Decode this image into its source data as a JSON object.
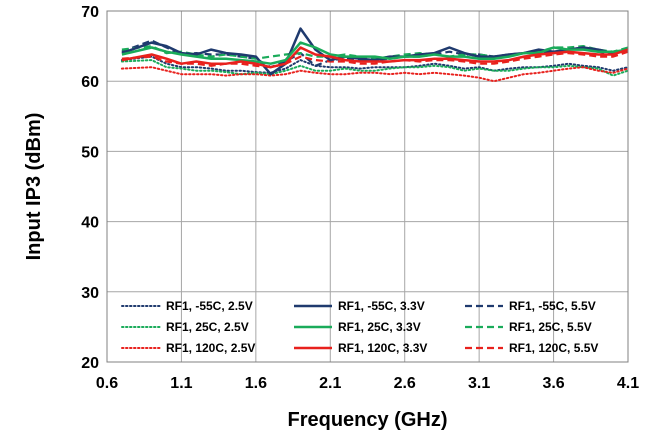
{
  "chart_data": {
    "type": "line",
    "title": "",
    "xlabel": "Frequency (GHz)",
    "ylabel": "Input IP3 (dBm)",
    "xlim": [
      0.6,
      4.1
    ],
    "ylim": [
      20,
      70
    ],
    "xticks": [
      "0.6",
      "1.1",
      "1.6",
      "2.1",
      "2.6",
      "3.1",
      "3.6",
      "4.1"
    ],
    "yticks": [
      "20",
      "30",
      "40",
      "50",
      "60",
      "70"
    ],
    "grid": true,
    "legend_position": "bottom",
    "x": [
      0.7,
      0.9,
      1.0,
      1.1,
      1.2,
      1.3,
      1.4,
      1.5,
      1.6,
      1.7,
      1.8,
      1.9,
      2.0,
      2.1,
      2.2,
      2.3,
      2.4,
      2.5,
      2.6,
      2.7,
      2.8,
      2.9,
      3.0,
      3.1,
      3.2,
      3.3,
      3.4,
      3.5,
      3.6,
      3.7,
      3.8,
      3.9,
      4.0,
      4.1
    ],
    "series": [
      {
        "name": "RF1, -55C, 2.5V",
        "color": "#1f3a6e",
        "style": "dotted",
        "values": [
          63.0,
          63.5,
          62.5,
          62.0,
          62.0,
          61.8,
          61.5,
          61.5,
          61.3,
          61.2,
          61.8,
          63.0,
          62.2,
          62.0,
          62.0,
          61.8,
          62.0,
          62.0,
          62.0,
          62.2,
          62.5,
          62.2,
          61.8,
          62.0,
          61.5,
          61.8,
          62.0,
          62.0,
          62.2,
          62.5,
          62.2,
          62.0,
          61.5,
          62.0
        ]
      },
      {
        "name": "RF1, -55C, 3.3V",
        "color": "#1f3a6e",
        "style": "solid",
        "values": [
          64.0,
          65.5,
          65.0,
          64.0,
          63.8,
          64.5,
          64.0,
          63.8,
          63.5,
          61.0,
          62.5,
          67.5,
          64.5,
          63.0,
          63.5,
          63.2,
          63.0,
          63.5,
          63.5,
          63.8,
          64.0,
          64.8,
          64.0,
          63.5,
          63.5,
          63.8,
          64.0,
          64.5,
          64.2,
          64.5,
          64.8,
          64.5,
          64.0,
          64.5
        ]
      },
      {
        "name": "RF1, -55C, 5.5V",
        "color": "#1f3a6e",
        "style": "dashed",
        "values": [
          64.2,
          65.8,
          64.8,
          63.8,
          64.0,
          63.8,
          63.8,
          63.5,
          63.2,
          62.0,
          62.8,
          64.0,
          62.2,
          63.0,
          63.2,
          63.0,
          63.0,
          63.2,
          63.5,
          63.5,
          63.8,
          64.2,
          63.8,
          63.8,
          63.5,
          63.8,
          64.0,
          64.2,
          64.0,
          64.5,
          64.8,
          64.2,
          63.8,
          64.5
        ]
      },
      {
        "name": "RF1, 25C, 2.5V",
        "color": "#1aab5a",
        "style": "dotted",
        "values": [
          62.8,
          63.0,
          62.0,
          61.8,
          61.5,
          61.5,
          61.3,
          61.0,
          61.2,
          61.0,
          61.5,
          62.2,
          61.5,
          61.5,
          61.8,
          61.5,
          61.5,
          61.8,
          62.0,
          62.0,
          62.2,
          62.0,
          61.5,
          61.8,
          61.5,
          61.5,
          61.8,
          62.0,
          62.0,
          62.2,
          62.0,
          61.8,
          60.8,
          61.5
        ]
      },
      {
        "name": "RF1, 25C, 3.3V",
        "color": "#1aab5a",
        "style": "solid",
        "values": [
          63.8,
          64.8,
          64.2,
          63.8,
          63.5,
          63.2,
          63.2,
          63.0,
          62.8,
          62.5,
          63.0,
          65.5,
          64.8,
          63.8,
          63.5,
          63.5,
          63.5,
          63.2,
          63.5,
          63.5,
          63.8,
          63.5,
          63.5,
          63.2,
          63.2,
          63.5,
          64.0,
          64.0,
          64.8,
          64.5,
          64.5,
          64.2,
          64.2,
          64.5
        ]
      },
      {
        "name": "RF1, 25C, 5.5V",
        "color": "#1aab5a",
        "style": "dashed",
        "values": [
          64.5,
          65.0,
          64.0,
          64.2,
          63.8,
          63.5,
          63.8,
          63.5,
          63.2,
          63.5,
          63.8,
          64.0,
          63.5,
          63.5,
          63.8,
          63.5,
          63.2,
          63.5,
          63.8,
          64.0,
          63.8,
          63.5,
          63.8,
          63.8,
          63.5,
          63.8,
          64.0,
          64.2,
          64.8,
          64.8,
          65.0,
          64.5,
          64.2,
          64.8
        ]
      },
      {
        "name": "RF1, 120C, 2.5V",
        "color": "#e8211d",
        "style": "dotted",
        "values": [
          61.8,
          62.0,
          61.5,
          61.0,
          61.0,
          61.0,
          60.8,
          61.0,
          61.0,
          60.8,
          61.0,
          61.5,
          61.2,
          61.0,
          61.0,
          61.2,
          61.2,
          61.0,
          61.2,
          61.0,
          61.2,
          61.0,
          60.8,
          60.5,
          60.0,
          60.5,
          61.0,
          61.2,
          61.5,
          61.8,
          62.0,
          61.5,
          61.2,
          61.8
        ]
      },
      {
        "name": "RF1, 120C, 3.3V",
        "color": "#e8211d",
        "style": "solid",
        "values": [
          63.0,
          63.8,
          63.2,
          62.5,
          62.8,
          62.5,
          62.5,
          62.8,
          62.5,
          62.0,
          62.5,
          64.8,
          63.8,
          63.5,
          63.0,
          62.8,
          62.8,
          62.8,
          63.0,
          63.0,
          63.2,
          63.2,
          63.0,
          62.8,
          62.8,
          63.0,
          63.5,
          63.8,
          64.0,
          64.2,
          64.0,
          63.8,
          63.8,
          64.5
        ]
      },
      {
        "name": "RF1, 120C, 5.5V",
        "color": "#e8211d",
        "style": "dashed",
        "values": [
          63.2,
          63.5,
          62.8,
          62.5,
          62.5,
          62.2,
          62.5,
          62.5,
          62.2,
          62.0,
          62.5,
          63.5,
          63.0,
          62.8,
          62.8,
          62.5,
          62.5,
          62.8,
          63.0,
          62.8,
          63.0,
          63.0,
          62.8,
          62.5,
          62.5,
          62.8,
          63.2,
          63.5,
          63.8,
          64.0,
          63.8,
          63.5,
          63.5,
          64.2
        ]
      }
    ]
  }
}
